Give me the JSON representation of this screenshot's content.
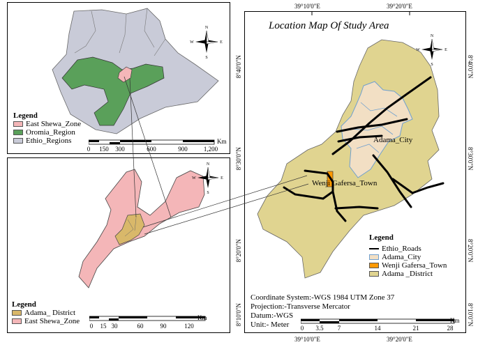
{
  "main_map": {
    "title": "Location Map Of Study Area",
    "top_coords": [
      "39°10'0\"E",
      "39°20'0\"E"
    ],
    "bottom_coords": [
      "39°10'0\"E",
      "39°20'0\"E"
    ],
    "left_coords": [
      "8°40'0\"N",
      "8°30'0\"N",
      "8°20'0\"N",
      "8°10'0\"N"
    ],
    "right_coords": [
      "8°40'0\"N",
      "8°30'0\"N",
      "8°20'0\"N",
      "8°10'0\"N"
    ],
    "labels": {
      "city": "Adama_City",
      "town": "Wenji Gafersa_Town"
    },
    "legend": {
      "title": "Legend",
      "items": [
        {
          "label": "Ethio_Roads",
          "kind": "line",
          "color": "#000000"
        },
        {
          "label": "Adama_City",
          "kind": "fill",
          "color": "#f2dfc4"
        },
        {
          "label": "Wenji Gafersa_Town",
          "kind": "fill",
          "color": "#ff9900"
        },
        {
          "label": "Adama _District",
          "kind": "fill",
          "color": "#e0d490"
        }
      ]
    },
    "info": {
      "coordinate_system": "Coordinate System:-WGS 1984 UTM Zone 37",
      "projection": "Projection:-Transverse Mercator",
      "datum": "Datum:-WGS",
      "unit": "Unit:- Meter"
    },
    "scale": {
      "ticks": [
        "0",
        "3.5",
        "7",
        "14",
        "21",
        "28"
      ],
      "unit": "Km"
    }
  },
  "ethiopia_map": {
    "legend": {
      "title": "Legend",
      "items": [
        {
          "label": "East Shewa_Zone",
          "color": "#f4b6b8"
        },
        {
          "label": "Oromia_Region",
          "color": "#5aa05a"
        },
        {
          "label": "Ethio_Regions",
          "color": "#c9cbd8"
        }
      ]
    },
    "scale": {
      "ticks": [
        "0",
        "150",
        "300",
        "600",
        "900",
        "1,200"
      ],
      "unit": "Km"
    }
  },
  "zone_map": {
    "legend": {
      "title": "Legend",
      "items": [
        {
          "label": "Adama_ District",
          "color": "#d9b86a"
        },
        {
          "label": "East Shewa_Zone",
          "color": "#f4b6b8"
        }
      ]
    },
    "scale": {
      "ticks": [
        "0",
        "15",
        "30",
        "60",
        "90",
        "120"
      ],
      "unit": "Km"
    }
  },
  "colors": {
    "ethio_regions": "#c9cbd8",
    "oromia": "#5aa05a",
    "east_shewa": "#f4b6b8",
    "adama_district": "#e0d490",
    "adama_city": "#f2dfc4",
    "wenji_town": "#ff9900"
  },
  "icons": [
    "north-arrow-icon"
  ]
}
